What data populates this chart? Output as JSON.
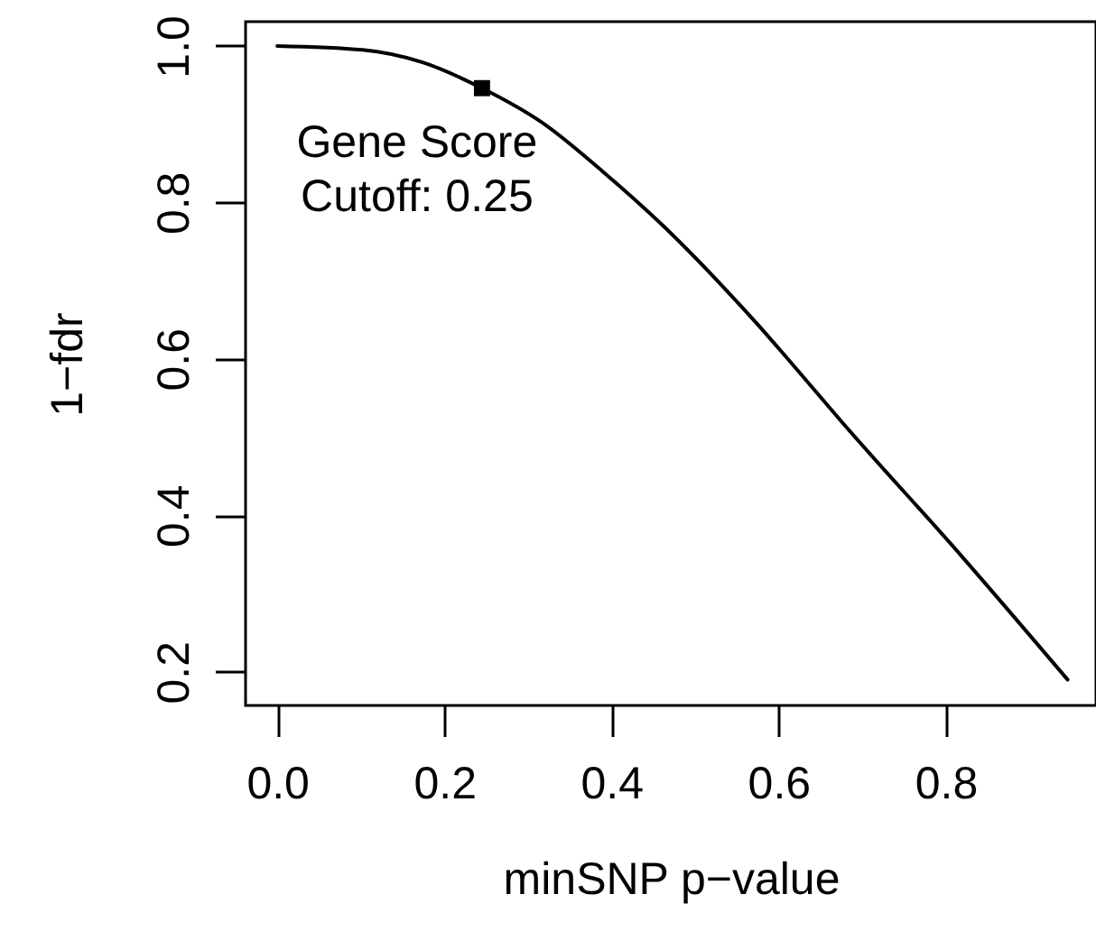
{
  "chart_data": {
    "type": "line",
    "xlabel": "minSNP p−value",
    "ylabel": "1−fdr",
    "x": [
      0,
      0.102,
      0.174,
      0.245,
      0.317,
      0.389,
      0.461,
      0.532,
      0.575,
      0.611,
      0.676,
      0.819,
      0.946
    ],
    "series": [
      {
        "color": "#000000",
        "values": [
          1.0,
          0.995,
          0.979,
          0.946,
          0.902,
          0.84,
          0.771,
          0.694,
          0.644,
          0.6,
          0.519,
          0.348,
          0.19
        ]
      },
      {
        "type": "scatter",
        "marker": "square",
        "color": "#000000",
        "x": [
          0.245
        ],
        "values": [
          0.946
        ]
      }
    ],
    "annotations": [
      {
        "text": "Gene Score\nCutoff: 0.25",
        "x": 0.245,
        "y": 0.946
      }
    ],
    "xlim": [
      -0.038,
      0.98
    ],
    "ylim": [
      0.157,
      1.031
    ],
    "xticks": [
      {
        "value": 0,
        "label": "0.0"
      },
      0.2,
      0.4,
      0.6,
      0.8
    ],
    "yticks": [
      0.2,
      0.4,
      0.6,
      0.8,
      {
        "value": 1,
        "label": "1.0"
      }
    ],
    "grid": false,
    "line_style": "solid",
    "marker": "none"
  }
}
